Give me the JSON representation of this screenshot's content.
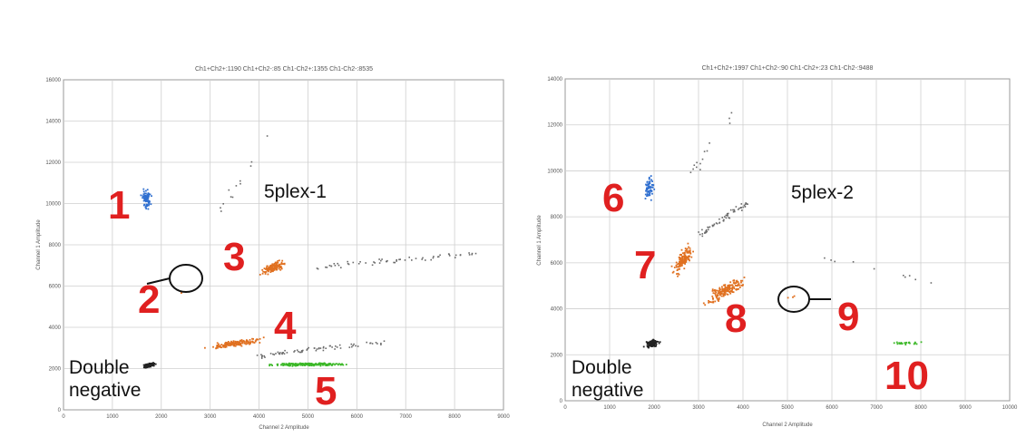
{
  "chart_data": [
    {
      "type": "scatter",
      "title": "Ch1+Ch2+:1190 Ch1+Ch2-:85 Ch1-Ch2+:1355 Ch1-Ch2-:8535",
      "xlabel": "Channel 2 Amplitude",
      "ylabel": "Channel 1 Amplitude",
      "xlim": [
        0,
        9000
      ],
      "ylim": [
        0,
        16000
      ],
      "xticks": [
        "0",
        "1000",
        "2000",
        "3000",
        "4000",
        "5000",
        "6000",
        "7000",
        "8000",
        "9000"
      ],
      "yticks": [
        "0",
        "2000",
        "4000",
        "6000",
        "8000",
        "10000",
        "12000",
        "14000",
        "16000"
      ],
      "grid": true,
      "plex_label": "5plex-1",
      "neg_label": [
        "Double",
        "negative"
      ],
      "clusters": [
        {
          "label": "1",
          "color": "#2f6fd0",
          "center": [
            1700,
            10200
          ],
          "n": 70
        },
        {
          "label": "2",
          "color": "#e07020",
          "center": [
            2420,
            5700
          ],
          "n": 2
        },
        {
          "label": "3",
          "color": "#e07020",
          "center": [
            4300,
            6900
          ],
          "n": 120
        },
        {
          "label": "4",
          "color": "#e07020",
          "center": [
            3500,
            3200
          ],
          "n": 150
        },
        {
          "label": "5",
          "color": "#3cb828",
          "center": [
            5000,
            2200
          ],
          "n": 200
        },
        {
          "label": "Double negative",
          "color": "#222222",
          "center": [
            1750,
            2150
          ],
          "n": 120
        }
      ]
    },
    {
      "type": "scatter",
      "title": "Ch1+Ch2+:1997 Ch1+Ch2-:90 Ch1-Ch2+:23 Ch1-Ch2-:9488",
      "xlabel": "Channel 2 Amplitude",
      "ylabel": "Channel 1 Amplitude",
      "xlim": [
        0,
        10000
      ],
      "ylim": [
        0,
        14000
      ],
      "xticks": [
        "0",
        "1000",
        "2000",
        "3000",
        "4000",
        "5000",
        "6000",
        "7000",
        "8000",
        "9000",
        "10000"
      ],
      "yticks": [
        "0",
        "2000",
        "4000",
        "6000",
        "8000",
        "10000",
        "12000",
        "14000"
      ],
      "grid": true,
      "plex_label": "5plex-2",
      "neg_label": [
        "Double",
        "negative"
      ],
      "clusters": [
        {
          "label": "6",
          "color": "#2f6fd0",
          "center": [
            1900,
            9300
          ],
          "n": 60
        },
        {
          "label": "7",
          "color": "#e07020",
          "center": [
            2650,
            6100
          ],
          "n": 130
        },
        {
          "label": "8",
          "color": "#e07020",
          "center": [
            3600,
            4800
          ],
          "n": 160
        },
        {
          "label": "9",
          "color": "#e07020",
          "center": [
            5100,
            4500
          ],
          "n": 3
        },
        {
          "label": "10",
          "color": "#3cb828",
          "center": [
            7700,
            2500
          ],
          "n": 25
        },
        {
          "label": "Double negative",
          "color": "#222222",
          "center": [
            1950,
            2500
          ],
          "n": 110
        }
      ]
    }
  ]
}
